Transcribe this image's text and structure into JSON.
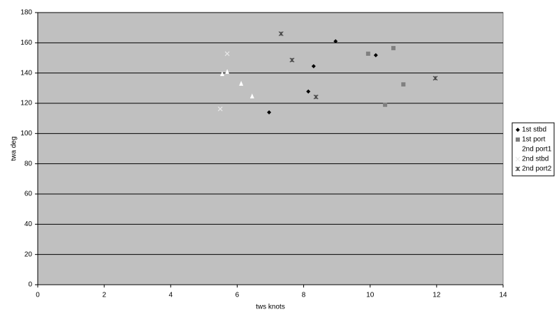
{
  "chart_data": {
    "type": "scatter",
    "x_label": "tws knots",
    "y_label": "twa deg",
    "xlim": [
      0,
      14
    ],
    "xticks": [
      0,
      2,
      4,
      6,
      8,
      10,
      12,
      14
    ],
    "ylim": [
      0,
      180
    ],
    "yticks": [
      0,
      20,
      40,
      60,
      80,
      100,
      120,
      140,
      160,
      180
    ],
    "grid": true,
    "legend": "right",
    "plot_background": "#c0c0c0",
    "series": [
      {
        "name": "1st stbd",
        "color": "#000000",
        "marker": "diamond",
        "x": [
          6.96,
          8.14,
          8.3,
          8.96,
          10.17
        ],
        "values": [
          114,
          127.8,
          144.5,
          161,
          151.8
        ]
      },
      {
        "name": "1st port",
        "color": "#808080",
        "marker": "square",
        "x": [
          9.94,
          10.7,
          11.0,
          10.45
        ],
        "values": [
          152.8,
          156.5,
          132.5,
          119
        ]
      },
      {
        "name": "2nd port1",
        "color": "#ffffff",
        "marker": "triangle",
        "x": [
          5.55,
          5.7,
          6.12,
          6.45
        ],
        "values": [
          139.4,
          140.8,
          133,
          124.6
        ]
      },
      {
        "name": "2nd stbd",
        "color": "#e8e8e8",
        "marker": "x",
        "x": [
          5.7,
          5.49
        ],
        "values": [
          152.8,
          116.3
        ]
      },
      {
        "name": "2nd port2",
        "color": "#404040",
        "marker": "star",
        "x": [
          7.32,
          7.65,
          8.37,
          11.96
        ],
        "values": [
          166,
          148.6,
          124.2,
          136.6
        ]
      }
    ]
  }
}
